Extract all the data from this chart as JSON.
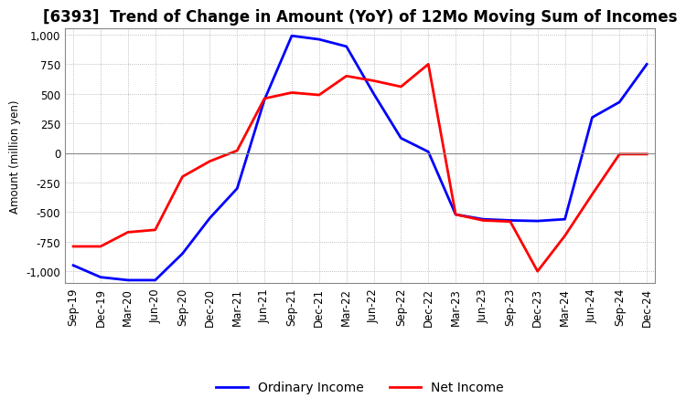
{
  "title": "[6393]  Trend of Change in Amount (YoY) of 12Mo Moving Sum of Incomes",
  "ylabel": "Amount (million yen)",
  "ylim": [
    -1100,
    1050
  ],
  "yticks": [
    -1000,
    -750,
    -500,
    -250,
    0,
    250,
    500,
    750,
    1000
  ],
  "legend_labels": [
    "Ordinary Income",
    "Net Income"
  ],
  "line_colors": [
    "#0000ff",
    "#ff0000"
  ],
  "x_labels": [
    "Sep-19",
    "Dec-19",
    "Mar-20",
    "Jun-20",
    "Sep-20",
    "Dec-20",
    "Mar-21",
    "Jun-21",
    "Sep-21",
    "Dec-21",
    "Mar-22",
    "Jun-22",
    "Sep-22",
    "Dec-22",
    "Mar-23",
    "Jun-23",
    "Sep-23",
    "Dec-23",
    "Mar-24",
    "Jun-24",
    "Sep-24",
    "Dec-24"
  ],
  "ordinary_income": [
    -950,
    -1050,
    -1075,
    -1075,
    -850,
    -550,
    -300,
    450,
    990,
    960,
    900,
    500,
    125,
    10,
    -520,
    -560,
    -570,
    -575,
    -560,
    300,
    430,
    750
  ],
  "net_income": [
    -790,
    -790,
    -670,
    -650,
    -200,
    -70,
    20,
    460,
    510,
    490,
    650,
    610,
    560,
    750,
    -520,
    -570,
    -580,
    -1000,
    -700,
    -350,
    -10,
    -10
  ],
  "background_color": "#ffffff",
  "grid_color": "#aaaaaa",
  "title_fontsize": 12,
  "label_fontsize": 8.5,
  "tick_fontsize": 8.5
}
